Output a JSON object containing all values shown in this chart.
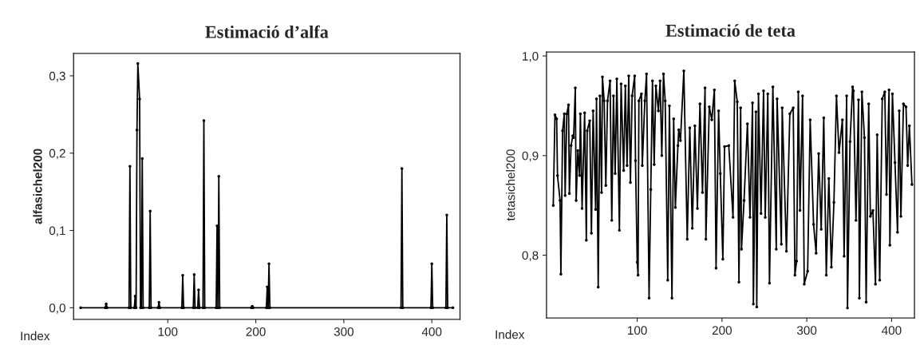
{
  "chart_data": [
    {
      "type": "line",
      "title": "Estimació d’alfa",
      "xlabel": "Index",
      "ylabel": "alfasichel200",
      "marker": "circle",
      "line_style": "solid",
      "grid": false,
      "legend": false,
      "xlim": [
        -7,
        432
      ],
      "xticks": [
        100,
        200,
        300,
        400
      ],
      "ylim": [
        -0.015,
        0.329
      ],
      "yticks": [
        {
          "value": 0.0,
          "label": "0,0"
        },
        {
          "value": 0.1,
          "label": "0,1"
        },
        {
          "value": 0.2,
          "label": "0,2"
        },
        {
          "value": 0.3,
          "label": "0,3"
        }
      ],
      "series": [
        {
          "color": "#000000",
          "x": [
            1,
            29,
            30,
            31,
            56,
            57,
            58,
            62,
            63,
            64,
            65,
            66,
            68,
            69,
            70,
            71,
            72,
            79,
            80,
            81,
            89,
            90,
            91,
            116,
            117,
            118,
            129,
            130,
            131,
            134,
            135,
            136,
            140,
            141,
            142,
            155,
            156,
            157,
            158,
            159,
            195,
            196,
            197,
            212,
            213,
            214,
            215,
            216,
            365,
            366,
            367,
            399,
            400,
            401,
            416,
            417,
            418,
            424
          ],
          "values": [
            0,
            0,
            0.005,
            0,
            0,
            0.183,
            0,
            0,
            0.015,
            0,
            0.23,
            0.316,
            0.27,
            0,
            0,
            0.193,
            0,
            0,
            0.125,
            0,
            0,
            0.007,
            0,
            0,
            0.042,
            0,
            0,
            0.043,
            0,
            0,
            0.023,
            0,
            0,
            0.242,
            0,
            0,
            0.106,
            0,
            0.17,
            0,
            0,
            0.002,
            0,
            0,
            0.027,
            0,
            0.057,
            0,
            0,
            0.18,
            0,
            0,
            0.057,
            0,
            0,
            0.12,
            0,
            0
          ]
        }
      ]
    },
    {
      "type": "line",
      "title": "Estimació de teta",
      "xlabel": "Index",
      "ylabel": "tetasichel200",
      "marker": "circle",
      "line_style": "solid",
      "grid": false,
      "legend": false,
      "xlim": [
        -7,
        427
      ],
      "xticks": [
        100,
        200,
        300,
        400
      ],
      "ylim": [
        0.737,
        1.004
      ],
      "yticks": [
        {
          "value": 0.8,
          "label": "0,8"
        },
        {
          "value": 0.9,
          "label": "0,9"
        },
        {
          "value": 1.0,
          "label": "1,0"
        }
      ],
      "series": [
        {
          "color": "#000000",
          "x": [
            1,
            3,
            5,
            6,
            9,
            10,
            12,
            14,
            15,
            17,
            19,
            20,
            22,
            24,
            25,
            27,
            28,
            30,
            32,
            33,
            35,
            38,
            40,
            41,
            44,
            46,
            48,
            51,
            52,
            54,
            56,
            58,
            59,
            61,
            63,
            65,
            68,
            70,
            72,
            74,
            76,
            79,
            81,
            84,
            86,
            88,
            90,
            92,
            94,
            97,
            98,
            100,
            101,
            102,
            105,
            106,
            109,
            111,
            114,
            116,
            118,
            120,
            122,
            125,
            127,
            129,
            131,
            133,
            136,
            138,
            141,
            143,
            145,
            148,
            149,
            151,
            155,
            159,
            162,
            165,
            168,
            171,
            174,
            177,
            180,
            181,
            185,
            188,
            191,
            193,
            196,
            198,
            201,
            203,
            208,
            213,
            215,
            218,
            220,
            222,
            223,
            226,
            230,
            233,
            236,
            237,
            240,
            241,
            243,
            246,
            249,
            251,
            254,
            256,
            260,
            264,
            265,
            270,
            271,
            276,
            280,
            284,
            286,
            288,
            290,
            292,
            295,
            297,
            301,
            304,
            308,
            311,
            314,
            317,
            320,
            323,
            326,
            329,
            332,
            335,
            338,
            342,
            344,
            347,
            348,
            351,
            354,
            355,
            358,
            361,
            362,
            365,
            368,
            370,
            373,
            375,
            378,
            381,
            383,
            386,
            389,
            392,
            394,
            397,
            398,
            401,
            404,
            407,
            409,
            411,
            414,
            417,
            419,
            421,
            424
          ],
          "values": [
            0.85,
            0.941,
            0.937,
            0.88,
            0.855,
            0.781,
            0.925,
            0.942,
            0.86,
            0.942,
            0.951,
            0.862,
            0.91,
            0.92,
            0.918,
            0.968,
            0.855,
            0.905,
            0.88,
            0.942,
            0.847,
            0.943,
            0.815,
            0.925,
            0.935,
            0.822,
            0.945,
            0.846,
            0.957,
            0.768,
            0.96,
            0.863,
            0.979,
            0.955,
            0.87,
            0.955,
            0.975,
            0.835,
            0.96,
            0.882,
            0.977,
            0.825,
            0.972,
            0.885,
            0.97,
            0.89,
            0.98,
            0.873,
            0.96,
            0.98,
            0.895,
            0.793,
            0.78,
            0.955,
            0.962,
            0.89,
            0.955,
            0.982,
            0.757,
            0.866,
            0.975,
            0.891,
            0.97,
            0.945,
            0.975,
            0.9,
            0.982,
            0.955,
            0.775,
            0.95,
            0.757,
            0.937,
            0.848,
            0.91,
            0.926,
            0.915,
            0.985,
            0.816,
            0.928,
            0.827,
            0.93,
            0.847,
            0.952,
            0.863,
            0.968,
            0.816,
            0.949,
            0.936,
            0.966,
            0.787,
            0.945,
            0.882,
            0.796,
            0.909,
            0.91,
            0.838,
            0.975,
            0.954,
            0.773,
            0.948,
            0.806,
            0.855,
            0.932,
            0.838,
            0.953,
            0.751,
            0.944,
            0.748,
            0.962,
            0.842,
            0.965,
            0.838,
            0.962,
            0.772,
            0.969,
            0.806,
            0.957,
            0.811,
            0.948,
            0.804,
            0.942,
            0.948,
            0.78,
            0.794,
            0.964,
            0.845,
            0.96,
            0.771,
            0.784,
            0.936,
            0.831,
            0.802,
            0.902,
            0.826,
            0.938,
            0.78,
            0.877,
            0.788,
            0.853,
            0.96,
            0.903,
            0.936,
            0.799,
            0.96,
            0.747,
            0.914,
            0.969,
            0.965,
            0.835,
            0.956,
            0.757,
            0.964,
            0.918,
            0.753,
            0.952,
            0.839,
            0.845,
            0.771,
            0.921,
            0.775,
            0.957,
            0.964,
            0.861,
            0.966,
            0.81,
            0.962,
            0.893,
            0.823,
            0.945,
            0.839,
            0.952,
            0.949,
            0.89,
            0.93,
            0.871
          ]
        }
      ]
    }
  ]
}
